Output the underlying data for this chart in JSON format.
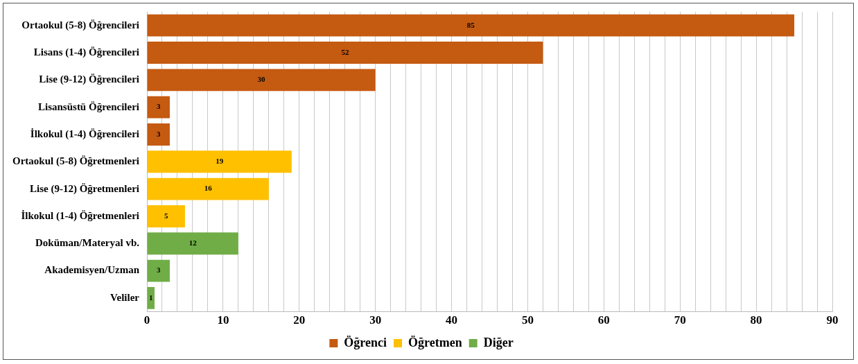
{
  "chart_data": {
    "type": "bar",
    "orientation": "horizontal",
    "categories": [
      "Ortaokul (5-8) Öğrencileri",
      "Lisans (1-4) Öğrencileri",
      "Lise (9-12) Öğrencileri",
      "Lisansüstü Öğrencileri",
      "İlkokul (1-4) Öğrencileri",
      "Ortaokul (5-8) Öğretmenleri",
      "Lise (9-12) Öğretmenleri",
      "İlkokul (1-4) Öğretmenleri",
      "Doküman/Materyal vb.",
      "Akademisyen/Uzman",
      "Veliler"
    ],
    "series": [
      {
        "name": "Öğrenci",
        "color": "#c55a11",
        "values": [
          85,
          52,
          30,
          3,
          3,
          null,
          null,
          null,
          null,
          null,
          null
        ]
      },
      {
        "name": "Öğretmen",
        "color": "#ffc000",
        "values": [
          null,
          null,
          null,
          null,
          null,
          19,
          16,
          5,
          null,
          null,
          null
        ]
      },
      {
        "name": "Diğer",
        "color": "#70ad47",
        "values": [
          null,
          null,
          null,
          null,
          null,
          null,
          null,
          null,
          12,
          3,
          1
        ]
      }
    ],
    "xlim": [
      0,
      90
    ],
    "xticks": [
      0,
      {
        "value": 2,
        "label": null
      },
      {
        "value": 4,
        "label": null
      },
      {
        "value": 6,
        "label": null
      },
      {
        "value": 8,
        "label": null
      },
      10,
      {
        "value": 12,
        "label": null
      },
      {
        "value": 14,
        "label": null
      },
      {
        "value": 16,
        "label": null
      },
      {
        "value": 18,
        "label": null
      },
      20,
      {
        "value": 22,
        "label": null
      },
      {
        "value": 24,
        "label": null
      },
      {
        "value": 26,
        "label": null
      },
      {
        "value": 28,
        "label": null
      },
      30,
      {
        "value": 32,
        "label": null
      },
      {
        "value": 34,
        "label": null
      },
      {
        "value": 36,
        "label": null
      },
      {
        "value": 38,
        "label": null
      },
      40,
      {
        "value": 42,
        "label": null
      },
      {
        "value": 44,
        "label": null
      },
      {
        "value": 46,
        "label": null
      },
      {
        "value": 48,
        "label": null
      },
      50,
      {
        "value": 52,
        "label": null
      },
      {
        "value": 54,
        "label": null
      },
      {
        "value": 56,
        "label": null
      },
      {
        "value": 58,
        "label": null
      },
      60,
      {
        "value": 62,
        "label": null
      },
      {
        "value": 64,
        "label": null
      },
      {
        "value": 66,
        "label": null
      },
      {
        "value": 68,
        "label": null
      },
      70,
      {
        "value": 72,
        "label": null
      },
      {
        "value": 74,
        "label": null
      },
      {
        "value": 76,
        "label": null
      },
      {
        "value": 78,
        "label": null
      },
      80,
      {
        "value": 82,
        "label": null
      },
      {
        "value": 84,
        "label": null
      },
      {
        "value": 86,
        "label": null
      },
      {
        "value": 88,
        "label": null
      },
      90
    ],
    "grid": "x",
    "legend": "bottom",
    "data_labels": true
  }
}
